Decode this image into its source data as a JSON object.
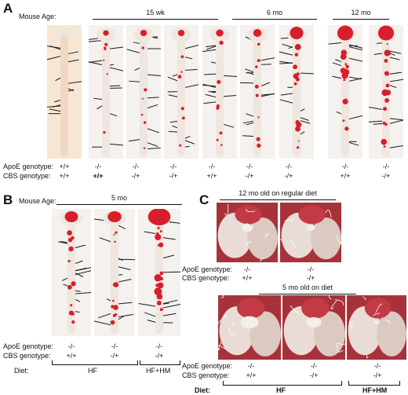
{
  "panels": {
    "a": "A",
    "b": "B",
    "c": "C"
  },
  "panel_a": {
    "mouse_age_label": "Mouse Age:",
    "groups": [
      "15 wk",
      "6 mo",
      "12 mo"
    ],
    "apoe_label": "ApoE genotype:",
    "cbs_label": "CBS genotype:",
    "apoe": [
      "+/+",
      "-/-",
      "-/-",
      "-/-",
      "-/-",
      "-/-",
      "-/-",
      "-/-",
      "-/-"
    ],
    "cbs": [
      "+/+",
      "+/+",
      "-/+",
      "-/+",
      "+/+",
      "-/+",
      "-/+",
      "+/+",
      "-/+"
    ]
  },
  "panel_b": {
    "mouse_age_label": "Mouse Age:",
    "group": "5 mo",
    "apoe_label": "ApoE genotype:",
    "cbs_label": "CBS genotype:",
    "apoe": [
      "-/-",
      "-/-",
      "-/-"
    ],
    "cbs": [
      "+/+",
      "-/+",
      "-/+"
    ],
    "diet_label": "Diet:",
    "diets": [
      "HF",
      "HF+HM"
    ]
  },
  "panel_c": {
    "top_title": "12 mo  old on regular diet",
    "top_apoe_label": "ApoE genotype:",
    "top_cbs_label": "CBS genotype:",
    "top_apoe": [
      "-/-",
      "-/-"
    ],
    "top_cbs": [
      "+/+",
      "-/+"
    ],
    "bottom_title": "5 mo  old on diet",
    "bottom_apoe_label": "ApoE genotype:",
    "bottom_cbs_label": "CBS genotype:",
    "bottom_apoe": [
      "-/-",
      "-/-",
      "-/-"
    ],
    "bottom_cbs": [
      "+/+",
      "-/+",
      "-/+"
    ],
    "diet_label": "Diet:",
    "diets": [
      "HF",
      "HF+HM"
    ]
  },
  "colors": {
    "tissue": "#efe6e0",
    "lesion": "#d81e2a",
    "background_photo": "#f4f1ee",
    "whisker": "#1a1a1a"
  }
}
